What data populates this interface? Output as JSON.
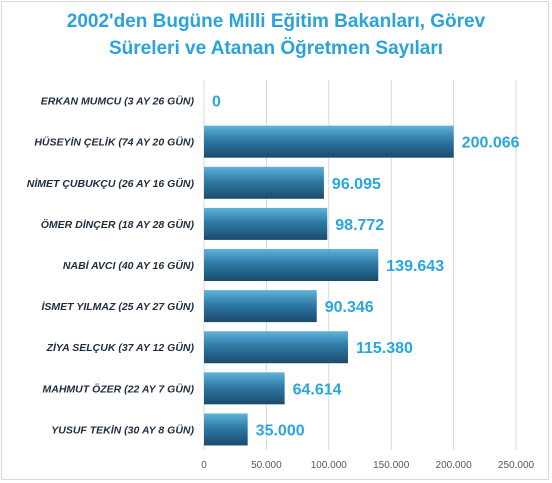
{
  "chart_data": {
    "type": "bar",
    "orientation": "horizontal",
    "title": [
      "2002'den Bugüne Milli Eğitim Bakanları, Görev",
      "Süreleri ve Atanan Öğretmen Sayıları"
    ],
    "categories": [
      "ERKAN MUMCU (3 AY 26 GÜN)",
      "HÜSEYİN ÇELİK (74 AY 20 GÜN)",
      "NİMET ÇUBUKÇU (26 AY 16 GÜN)",
      "ÖMER DİNÇER (18 AY 28 GÜN)",
      "NABİ AVCI (40 AY 16 GÜN)",
      "İSMET YILMAZ (25 AY 27 GÜN)",
      "ZİYA SELÇUK (37 AY 12 GÜN)",
      "MAHMUT ÖZER (22 AY 7 GÜN)",
      "YUSUF TEKİN (30 AY 8 GÜN)"
    ],
    "values": [
      0,
      200066,
      96095,
      98772,
      139643,
      90346,
      115380,
      64614,
      35000
    ],
    "value_labels": [
      "0",
      "200.066",
      "96.095",
      "98.772",
      "139.643",
      "90.346",
      "115.380",
      "64.614",
      "35.000"
    ],
    "xlim": [
      0,
      250000
    ],
    "xticks": [
      0,
      50000,
      100000,
      150000,
      200000,
      250000
    ],
    "xtick_labels": [
      "0",
      "50.000",
      "100.000",
      "150.000",
      "200.000",
      "250.000"
    ],
    "grid": true,
    "legend": "none",
    "colors": {
      "bar_light": "#5fb3da",
      "bar_dark": "#1b4a6b",
      "title": "#29a3d9",
      "value_label": "#2aa6dc"
    }
  }
}
